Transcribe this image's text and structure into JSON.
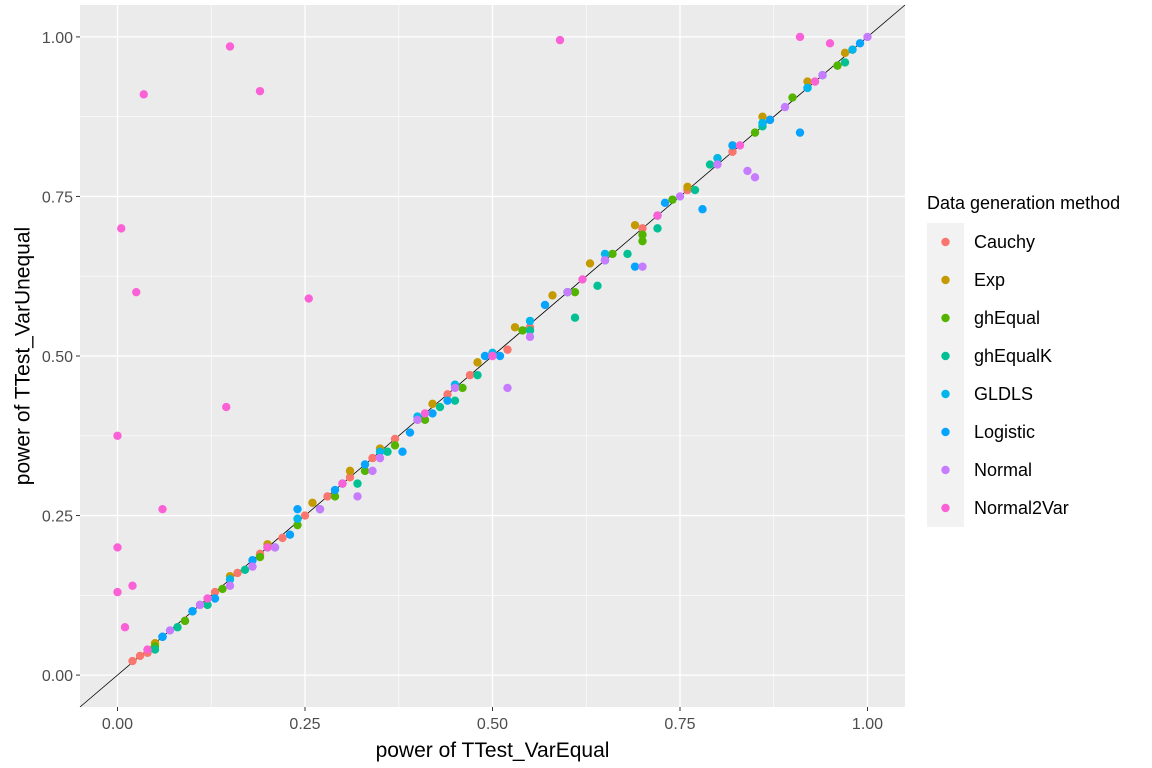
{
  "chart_data": {
    "type": "scatter",
    "xlabel": "power of TTest_VarEqual",
    "ylabel": "power of TTest_VarUnequal",
    "xlim": [
      -0.05,
      1.05
    ],
    "ylim": [
      -0.05,
      1.05
    ],
    "x_ticks": [
      0.0,
      0.25,
      0.5,
      0.75,
      1.0
    ],
    "y_ticks": [
      0.0,
      0.25,
      0.5,
      0.75,
      1.0
    ],
    "x_tick_labels": [
      "0.00",
      "0.25",
      "0.50",
      "0.75",
      "1.00"
    ],
    "y_tick_labels": [
      "0.00",
      "0.25",
      "0.50",
      "0.75",
      "1.00"
    ],
    "grid": true,
    "reference_line": "y = x",
    "legend": {
      "title": "Data generation method",
      "position": "right"
    },
    "series": [
      {
        "name": "Cauchy",
        "color": "#F8766D",
        "points": [
          [
            0.02,
            0.022
          ],
          [
            0.03,
            0.03
          ],
          [
            0.04,
            0.035
          ],
          [
            0.06,
            0.06
          ],
          [
            0.09,
            0.085
          ],
          [
            0.11,
            0.11
          ],
          [
            0.13,
            0.13
          ],
          [
            0.16,
            0.16
          ],
          [
            0.19,
            0.19
          ],
          [
            0.22,
            0.215
          ],
          [
            0.25,
            0.25
          ],
          [
            0.28,
            0.28
          ],
          [
            0.31,
            0.31
          ],
          [
            0.34,
            0.34
          ],
          [
            0.37,
            0.37
          ],
          [
            0.4,
            0.4
          ],
          [
            0.44,
            0.44
          ],
          [
            0.47,
            0.47
          ],
          [
            0.52,
            0.51
          ],
          [
            0.55,
            0.545
          ],
          [
            0.6,
            0.6
          ],
          [
            0.65,
            0.65
          ],
          [
            0.7,
            0.7
          ],
          [
            0.76,
            0.76
          ],
          [
            0.82,
            0.82
          ],
          [
            0.87,
            0.87
          ],
          [
            0.93,
            0.93
          ],
          [
            0.98,
            0.98
          ]
        ]
      },
      {
        "name": "Exp",
        "color": "#C49A00",
        "points": [
          [
            0.05,
            0.05
          ],
          [
            0.1,
            0.1
          ],
          [
            0.15,
            0.155
          ],
          [
            0.2,
            0.205
          ],
          [
            0.26,
            0.27
          ],
          [
            0.31,
            0.32
          ],
          [
            0.35,
            0.355
          ],
          [
            0.42,
            0.425
          ],
          [
            0.48,
            0.49
          ],
          [
            0.53,
            0.545
          ],
          [
            0.58,
            0.595
          ],
          [
            0.63,
            0.645
          ],
          [
            0.69,
            0.705
          ],
          [
            0.76,
            0.765
          ],
          [
            0.82,
            0.83
          ],
          [
            0.86,
            0.875
          ],
          [
            0.92,
            0.93
          ],
          [
            0.97,
            0.975
          ]
        ]
      },
      {
        "name": "ghEqual",
        "color": "#53B400",
        "points": [
          [
            0.05,
            0.045
          ],
          [
            0.09,
            0.085
          ],
          [
            0.14,
            0.135
          ],
          [
            0.19,
            0.185
          ],
          [
            0.24,
            0.235
          ],
          [
            0.29,
            0.28
          ],
          [
            0.33,
            0.32
          ],
          [
            0.37,
            0.36
          ],
          [
            0.41,
            0.4
          ],
          [
            0.46,
            0.45
          ],
          [
            0.54,
            0.54
          ],
          [
            0.61,
            0.6
          ],
          [
            0.66,
            0.66
          ],
          [
            0.7,
            0.69
          ],
          [
            0.7,
            0.68
          ],
          [
            0.74,
            0.745
          ],
          [
            0.8,
            0.81
          ],
          [
            0.85,
            0.85
          ],
          [
            0.9,
            0.905
          ],
          [
            0.96,
            0.955
          ]
        ]
      },
      {
        "name": "ghEqualK",
        "color": "#00C094",
        "points": [
          [
            0.05,
            0.04
          ],
          [
            0.08,
            0.075
          ],
          [
            0.12,
            0.11
          ],
          [
            0.17,
            0.165
          ],
          [
            0.21,
            0.2
          ],
          [
            0.27,
            0.26
          ],
          [
            0.32,
            0.3
          ],
          [
            0.36,
            0.35
          ],
          [
            0.43,
            0.42
          ],
          [
            0.45,
            0.43
          ],
          [
            0.48,
            0.47
          ],
          [
            0.55,
            0.54
          ],
          [
            0.61,
            0.56
          ],
          [
            0.64,
            0.61
          ],
          [
            0.68,
            0.66
          ],
          [
            0.72,
            0.7
          ],
          [
            0.77,
            0.76
          ],
          [
            0.79,
            0.8
          ],
          [
            0.86,
            0.86
          ],
          [
            0.92,
            0.92
          ],
          [
            0.97,
            0.96
          ]
        ]
      },
      {
        "name": "GLDLS",
        "color": "#00B6EB",
        "points": [
          [
            0.06,
            0.06
          ],
          [
            0.1,
            0.1
          ],
          [
            0.15,
            0.15
          ],
          [
            0.2,
            0.2
          ],
          [
            0.24,
            0.245
          ],
          [
            0.3,
            0.3
          ],
          [
            0.35,
            0.35
          ],
          [
            0.4,
            0.405
          ],
          [
            0.45,
            0.455
          ],
          [
            0.5,
            0.505
          ],
          [
            0.55,
            0.555
          ],
          [
            0.6,
            0.6
          ],
          [
            0.65,
            0.66
          ],
          [
            0.72,
            0.72
          ],
          [
            0.8,
            0.81
          ],
          [
            0.86,
            0.865
          ],
          [
            0.92,
            0.92
          ],
          [
            0.98,
            0.98
          ]
        ]
      },
      {
        "name": "Logistic",
        "color": "#06A4FF",
        "points": [
          [
            0.06,
            0.06
          ],
          [
            0.1,
            0.1
          ],
          [
            0.13,
            0.12
          ],
          [
            0.18,
            0.18
          ],
          [
            0.23,
            0.22
          ],
          [
            0.24,
            0.26
          ],
          [
            0.29,
            0.29
          ],
          [
            0.33,
            0.33
          ],
          [
            0.38,
            0.35
          ],
          [
            0.39,
            0.38
          ],
          [
            0.42,
            0.41
          ],
          [
            0.44,
            0.43
          ],
          [
            0.49,
            0.5
          ],
          [
            0.51,
            0.5
          ],
          [
            0.57,
            0.58
          ],
          [
            0.65,
            0.65
          ],
          [
            0.69,
            0.64
          ],
          [
            0.73,
            0.74
          ],
          [
            0.78,
            0.73
          ],
          [
            0.82,
            0.83
          ],
          [
            0.87,
            0.87
          ],
          [
            0.91,
            0.85
          ],
          [
            0.94,
            0.94
          ],
          [
            0.99,
            0.99
          ]
        ]
      },
      {
        "name": "Normal",
        "color": "#C77CFF",
        "points": [
          [
            0.07,
            0.07
          ],
          [
            0.11,
            0.11
          ],
          [
            0.15,
            0.14
          ],
          [
            0.18,
            0.17
          ],
          [
            0.21,
            0.2
          ],
          [
            0.27,
            0.26
          ],
          [
            0.32,
            0.28
          ],
          [
            0.34,
            0.32
          ],
          [
            0.35,
            0.34
          ],
          [
            0.4,
            0.4
          ],
          [
            0.45,
            0.45
          ],
          [
            0.5,
            0.5
          ],
          [
            0.52,
            0.45
          ],
          [
            0.55,
            0.53
          ],
          [
            0.6,
            0.6
          ],
          [
            0.65,
            0.65
          ],
          [
            0.7,
            0.64
          ],
          [
            0.75,
            0.75
          ],
          [
            0.8,
            0.8
          ],
          [
            0.84,
            0.79
          ],
          [
            0.85,
            0.78
          ],
          [
            0.89,
            0.89
          ],
          [
            0.94,
            0.94
          ],
          [
            1.0,
            1.0
          ]
        ]
      },
      {
        "name": "Normal2Var",
        "color": "#FB61D7",
        "points": [
          [
            0.0,
            0.375
          ],
          [
            0.0,
            0.2
          ],
          [
            0.0,
            0.13
          ],
          [
            0.005,
            0.7
          ],
          [
            0.01,
            0.075
          ],
          [
            0.02,
            0.14
          ],
          [
            0.025,
            0.6
          ],
          [
            0.035,
            0.91
          ],
          [
            0.06,
            0.26
          ],
          [
            0.145,
            0.42
          ],
          [
            0.15,
            0.985
          ],
          [
            0.19,
            0.915
          ],
          [
            0.255,
            0.59
          ],
          [
            0.59,
            0.995
          ],
          [
            0.91,
            1.0
          ],
          [
            0.95,
            0.99
          ],
          [
            0.04,
            0.04
          ],
          [
            0.12,
            0.12
          ],
          [
            0.2,
            0.2
          ],
          [
            0.3,
            0.3
          ],
          [
            0.41,
            0.41
          ],
          [
            0.5,
            0.5
          ],
          [
            0.62,
            0.62
          ],
          [
            0.72,
            0.72
          ],
          [
            0.83,
            0.83
          ],
          [
            0.93,
            0.93
          ]
        ]
      }
    ]
  }
}
